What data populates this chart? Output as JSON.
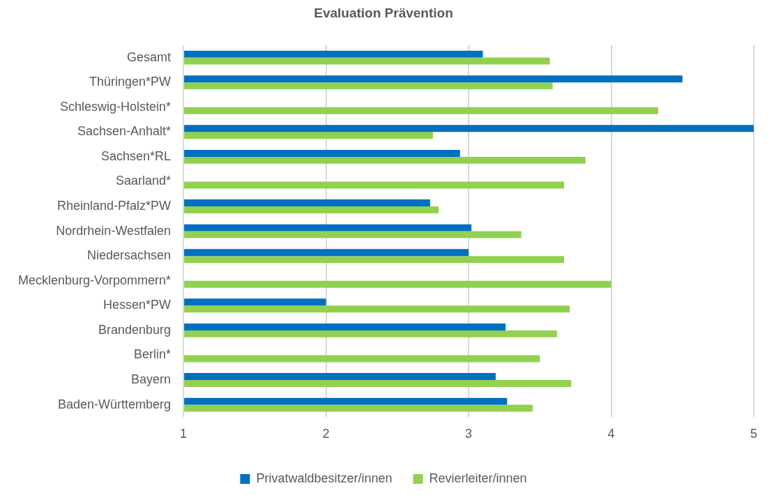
{
  "chart_data": {
    "type": "bar",
    "orientation": "horizontal",
    "title": "Evaluation Prävention",
    "categories": [
      "Gesamt",
      "Thüringen*PW",
      "Schleswig-Holstein*",
      "Sachsen-Anhalt*",
      "Sachsen*RL",
      "Saarland*",
      "Rheinland-Pfalz*PW",
      "Nordrhein-Westfalen",
      "Niedersachsen",
      "Mecklenburg-Vorpommern*",
      "Hessen*PW",
      "Brandenburg",
      "Berlin*",
      "Bayern",
      "Baden-Württemberg"
    ],
    "series": [
      {
        "name": "Privatwaldbesitzer/innen",
        "color": "#0070c0",
        "values": [
          3.1,
          4.5,
          null,
          5.0,
          2.94,
          null,
          2.73,
          3.02,
          3.0,
          null,
          2.0,
          3.26,
          null,
          3.19,
          3.27
        ]
      },
      {
        "name": "Revierleiter/innen",
        "color": "#92d050",
        "values": [
          3.57,
          3.59,
          4.33,
          2.75,
          3.82,
          3.67,
          2.79,
          3.37,
          3.67,
          4.0,
          3.71,
          3.62,
          3.5,
          3.72,
          3.45
        ]
      }
    ],
    "xlim": [
      1,
      5
    ],
    "xticks": [
      1,
      2,
      3,
      4,
      5
    ],
    "grid": "x",
    "legend": "bottom"
  }
}
